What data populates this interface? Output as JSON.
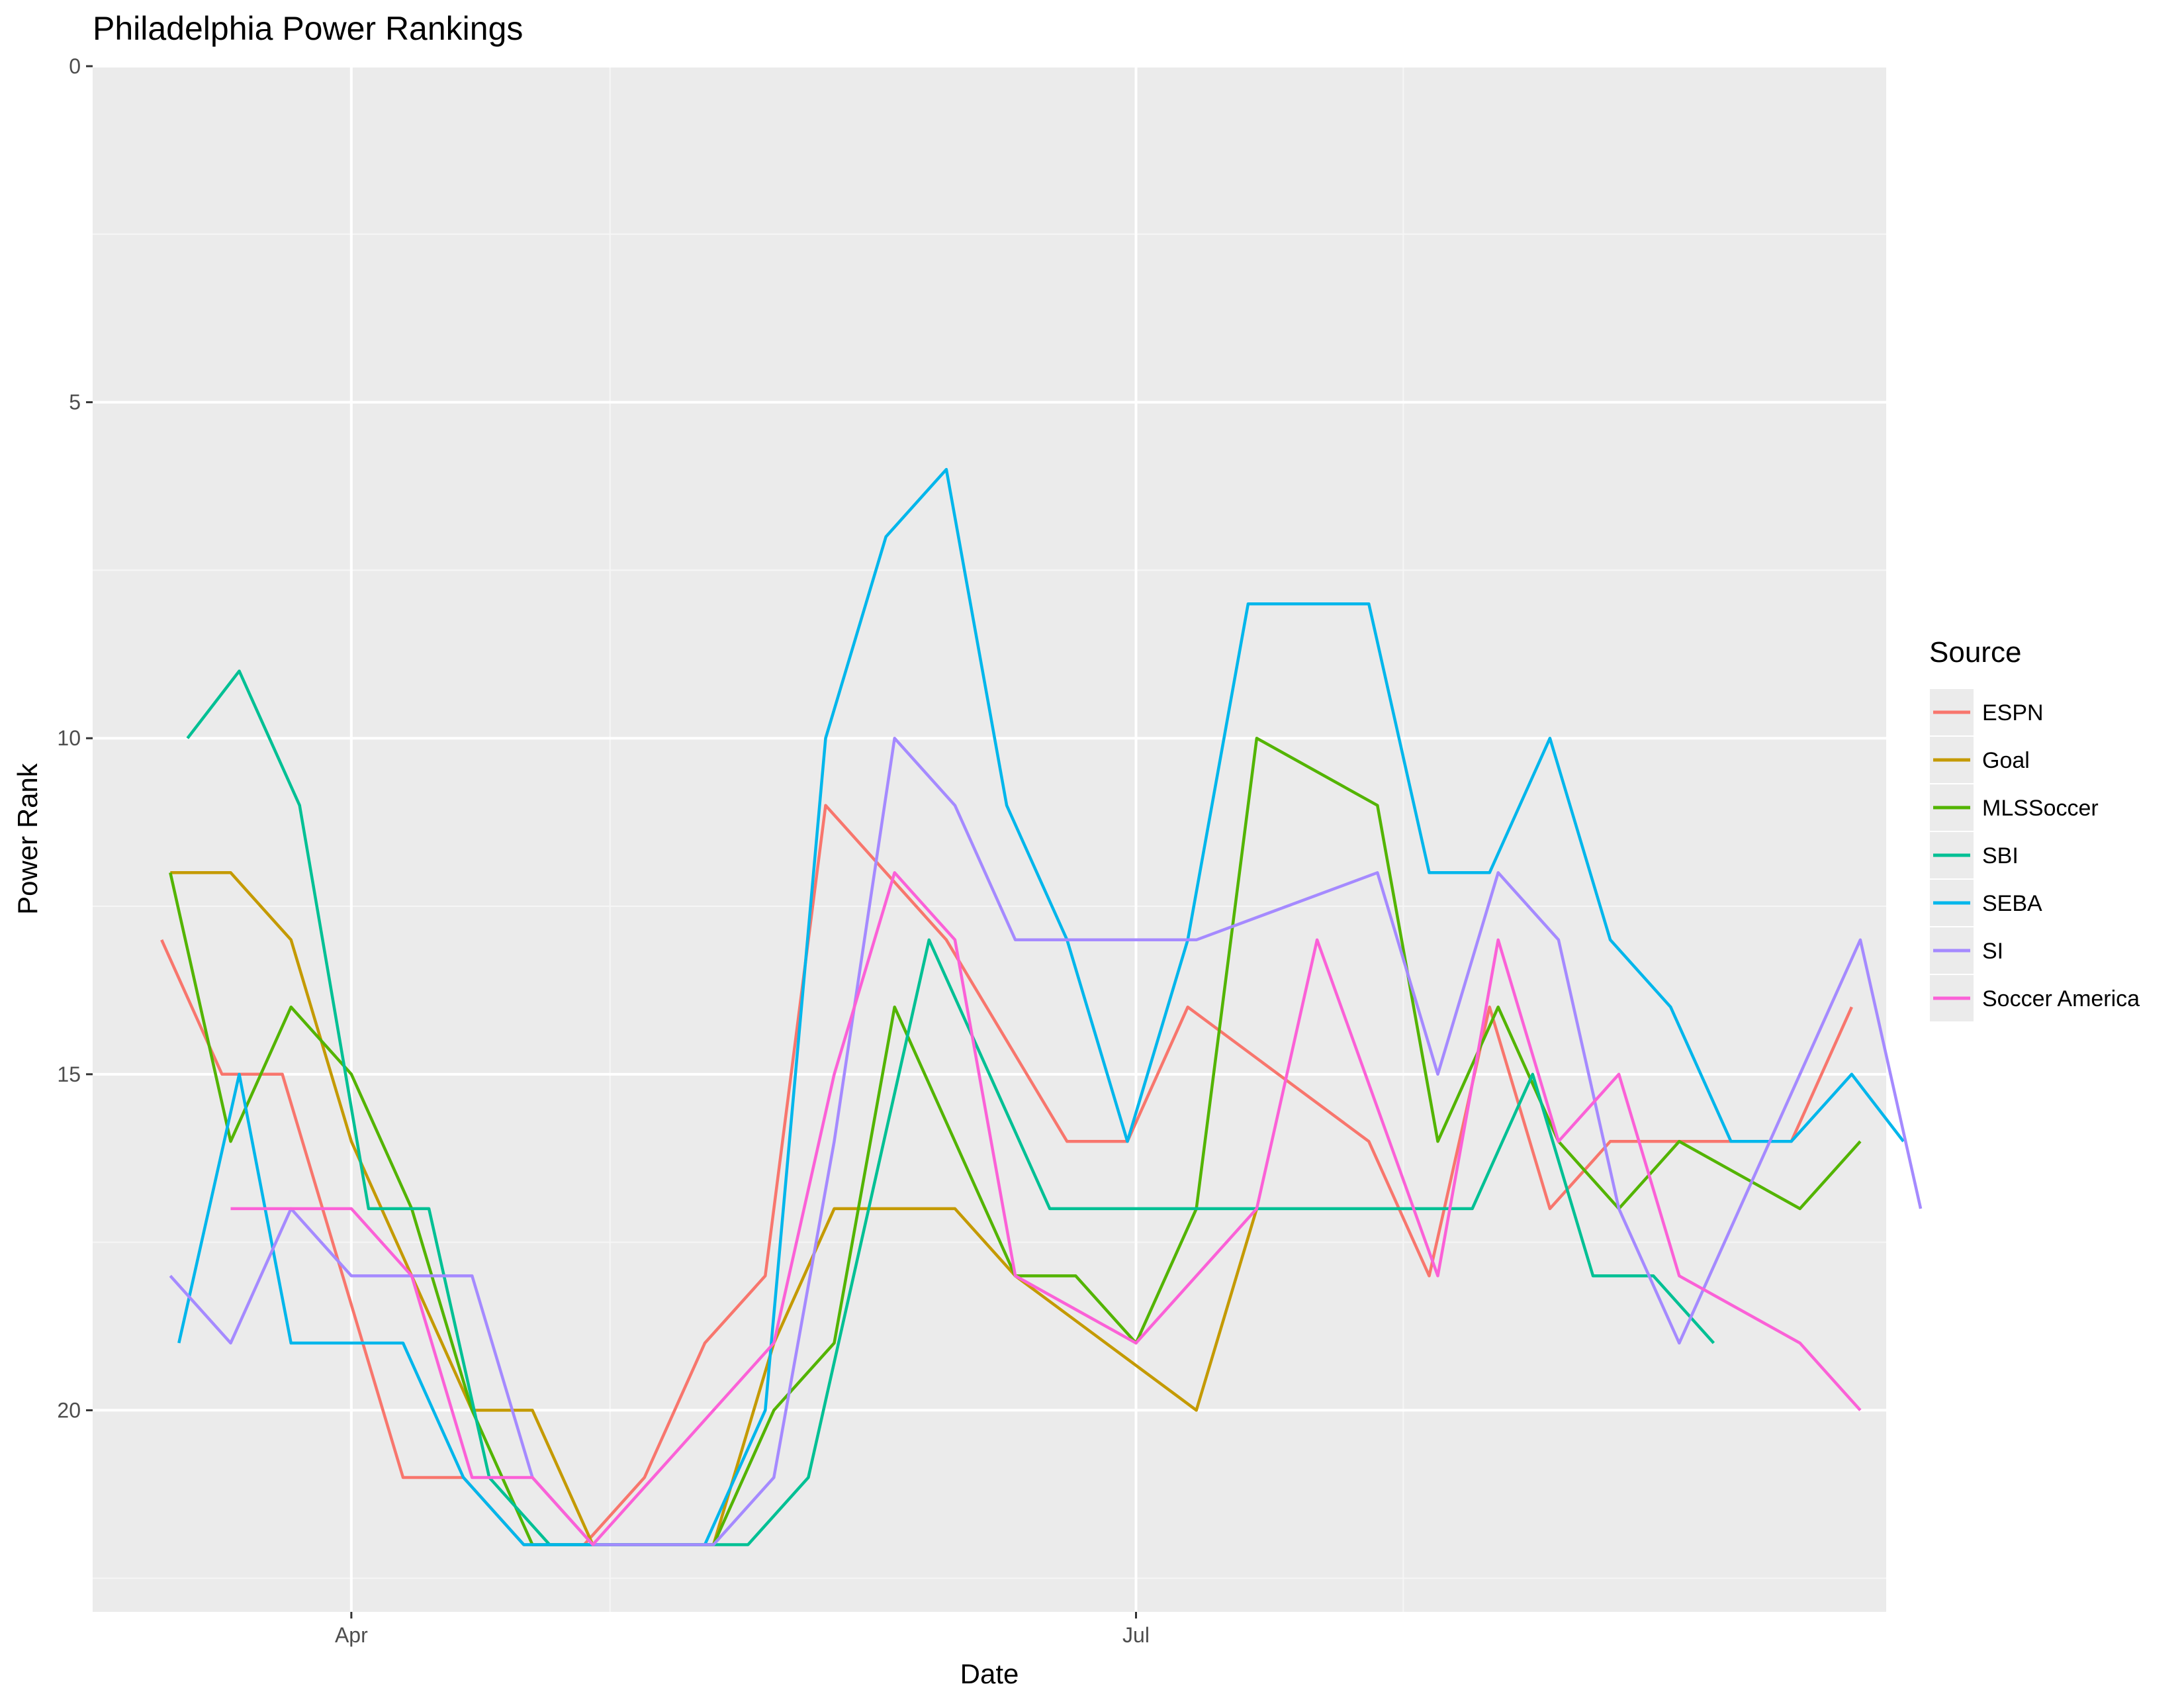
{
  "chart_data": {
    "type": "line",
    "title": "Philadelphia Power Rankings",
    "xlabel": "Date",
    "ylabel": "Power Rank",
    "y_reversed": true,
    "ylim": [
      0,
      23
    ],
    "y_ticks": [
      0,
      5,
      10,
      15,
      20
    ],
    "xlim": [
      "2016-03-02",
      "2016-09-26"
    ],
    "x_ticks": [
      {
        "date": "2016-04-01",
        "label": "Apr"
      },
      {
        "date": "2016-07-01",
        "label": "Jul"
      }
    ],
    "x_minor_ticks": [
      "2016-05-01",
      "2016-08-01"
    ],
    "legend": {
      "title": "Source",
      "position": "right"
    },
    "grid": true,
    "series": [
      {
        "name": "ESPN",
        "color": "#F8766D",
        "points": [
          [
            "2016-03-10",
            13
          ],
          [
            "2016-03-17",
            15
          ],
          [
            "2016-03-24",
            15
          ],
          [
            "2016-03-31",
            18
          ],
          [
            "2016-04-07",
            21
          ],
          [
            "2016-04-14",
            21
          ],
          [
            "2016-04-21",
            22
          ],
          [
            "2016-04-28",
            22
          ],
          [
            "2016-05-05",
            21
          ],
          [
            "2016-05-12",
            19
          ],
          [
            "2016-05-19",
            18
          ],
          [
            "2016-05-26",
            11
          ],
          [
            "2016-06-02",
            12
          ],
          [
            "2016-06-09",
            13
          ],
          [
            "2016-06-23",
            16
          ],
          [
            "2016-06-30",
            16
          ],
          [
            "2016-07-07",
            14
          ],
          [
            "2016-07-28",
            16
          ],
          [
            "2016-08-04",
            18
          ],
          [
            "2016-08-11",
            14
          ],
          [
            "2016-08-18",
            17
          ],
          [
            "2016-08-25",
            16
          ],
          [
            "2016-09-15",
            16
          ],
          [
            "2016-09-22",
            14
          ]
        ]
      },
      {
        "name": "Goal",
        "color": "#C49A00",
        "points": [
          [
            "2016-03-11",
            12
          ],
          [
            "2016-03-18",
            12
          ],
          [
            "2016-03-25",
            13
          ],
          [
            "2016-04-01",
            16
          ],
          [
            "2016-04-08",
            18
          ],
          [
            "2016-04-15",
            20
          ],
          [
            "2016-04-22",
            20
          ],
          [
            "2016-04-29",
            22
          ],
          [
            "2016-05-06",
            22
          ],
          [
            "2016-05-13",
            22
          ],
          [
            "2016-05-20",
            19
          ],
          [
            "2016-05-27",
            17
          ],
          [
            "2016-06-10",
            17
          ],
          [
            "2016-06-17",
            18
          ],
          [
            "2016-07-08",
            20
          ],
          [
            "2016-07-15",
            17
          ]
        ]
      },
      {
        "name": "MLSSoccer",
        "color": "#53B400",
        "points": [
          [
            "2016-03-11",
            12
          ],
          [
            "2016-03-18",
            16
          ],
          [
            "2016-03-25",
            14
          ],
          [
            "2016-04-01",
            15
          ],
          [
            "2016-04-08",
            17
          ],
          [
            "2016-04-15",
            20
          ],
          [
            "2016-04-22",
            22
          ],
          [
            "2016-05-06",
            22
          ],
          [
            "2016-05-13",
            22
          ],
          [
            "2016-05-20",
            20
          ],
          [
            "2016-05-27",
            19
          ],
          [
            "2016-06-03",
            14
          ],
          [
            "2016-06-10",
            16
          ],
          [
            "2016-06-17",
            18
          ],
          [
            "2016-06-24",
            18
          ],
          [
            "2016-07-01",
            19
          ],
          [
            "2016-07-08",
            17
          ],
          [
            "2016-07-15",
            10
          ],
          [
            "2016-07-29",
            11
          ],
          [
            "2016-08-05",
            16
          ],
          [
            "2016-08-12",
            14
          ],
          [
            "2016-08-19",
            16
          ],
          [
            "2016-08-26",
            17
          ],
          [
            "2016-09-02",
            16
          ],
          [
            "2016-09-16",
            17
          ],
          [
            "2016-09-23",
            16
          ]
        ]
      },
      {
        "name": "SBI",
        "color": "#00C094",
        "points": [
          [
            "2016-03-13",
            10
          ],
          [
            "2016-03-19",
            9
          ],
          [
            "2016-03-26",
            11
          ],
          [
            "2016-04-03",
            17
          ],
          [
            "2016-04-10",
            17
          ],
          [
            "2016-04-17",
            21
          ],
          [
            "2016-04-24",
            22
          ],
          [
            "2016-05-01",
            22
          ],
          [
            "2016-05-10",
            22
          ],
          [
            "2016-05-17",
            22
          ],
          [
            "2016-05-24",
            21
          ],
          [
            "2016-05-31",
            17
          ],
          [
            "2016-06-07",
            13
          ],
          [
            "2016-06-14",
            15
          ],
          [
            "2016-06-21",
            17
          ],
          [
            "2016-06-28",
            17
          ],
          [
            "2016-07-19",
            17
          ],
          [
            "2016-08-02",
            17
          ],
          [
            "2016-08-09",
            17
          ],
          [
            "2016-08-16",
            15
          ],
          [
            "2016-08-23",
            18
          ],
          [
            "2016-08-30",
            18
          ],
          [
            "2016-09-06",
            19
          ]
        ]
      },
      {
        "name": "SEBA",
        "color": "#00B6EB",
        "points": [
          [
            "2016-03-12",
            19
          ],
          [
            "2016-03-19",
            15
          ],
          [
            "2016-03-25",
            19
          ],
          [
            "2016-04-01",
            19
          ],
          [
            "2016-04-07",
            19
          ],
          [
            "2016-04-14",
            21
          ],
          [
            "2016-04-21",
            22
          ],
          [
            "2016-04-28",
            22
          ],
          [
            "2016-05-05",
            22
          ],
          [
            "2016-05-12",
            22
          ],
          [
            "2016-05-19",
            20
          ],
          [
            "2016-05-26",
            10
          ],
          [
            "2016-06-02",
            7
          ],
          [
            "2016-06-09",
            6
          ],
          [
            "2016-06-16",
            11
          ],
          [
            "2016-06-23",
            13
          ],
          [
            "2016-06-30",
            16
          ],
          [
            "2016-07-07",
            13
          ],
          [
            "2016-07-14",
            8
          ],
          [
            "2016-07-28",
            8
          ],
          [
            "2016-08-04",
            12
          ],
          [
            "2016-08-11",
            12
          ],
          [
            "2016-08-18",
            10
          ],
          [
            "2016-08-25",
            13
          ],
          [
            "2016-09-01",
            14
          ],
          [
            "2016-09-08",
            16
          ],
          [
            "2016-09-15",
            16
          ],
          [
            "2016-09-22",
            15
          ],
          [
            "2016-09-28",
            16
          ]
        ]
      },
      {
        "name": "SI",
        "color": "#A58AFF",
        "points": [
          [
            "2016-03-11",
            18
          ],
          [
            "2016-03-18",
            19
          ],
          [
            "2016-03-25",
            17
          ],
          [
            "2016-04-01",
            18
          ],
          [
            "2016-04-08",
            18
          ],
          [
            "2016-04-15",
            18
          ],
          [
            "2016-04-22",
            21
          ],
          [
            "2016-04-29",
            22
          ],
          [
            "2016-05-06",
            22
          ],
          [
            "2016-05-13",
            22
          ],
          [
            "2016-05-20",
            21
          ],
          [
            "2016-05-27",
            16
          ],
          [
            "2016-06-03",
            10
          ],
          [
            "2016-06-10",
            11
          ],
          [
            "2016-06-17",
            13
          ],
          [
            "2016-06-24",
            13
          ],
          [
            "2016-07-08",
            13
          ],
          [
            "2016-07-29",
            12
          ],
          [
            "2016-08-05",
            15
          ],
          [
            "2016-08-12",
            12
          ],
          [
            "2016-08-19",
            13
          ],
          [
            "2016-08-26",
            17
          ],
          [
            "2016-09-02",
            19
          ],
          [
            "2016-09-09",
            17
          ],
          [
            "2016-09-16",
            15
          ],
          [
            "2016-09-23",
            13
          ],
          [
            "2016-09-30",
            17
          ]
        ]
      },
      {
        "name": "Soccer America",
        "color": "#FB61D7",
        "points": [
          [
            "2016-03-18",
            17
          ],
          [
            "2016-03-25",
            17
          ],
          [
            "2016-04-01",
            17
          ],
          [
            "2016-04-08",
            18
          ],
          [
            "2016-04-15",
            21
          ],
          [
            "2016-04-22",
            21
          ],
          [
            "2016-04-29",
            22
          ],
          [
            "2016-05-06",
            21
          ],
          [
            "2016-05-13",
            20
          ],
          [
            "2016-05-20",
            19
          ],
          [
            "2016-05-27",
            15
          ],
          [
            "2016-06-03",
            12
          ],
          [
            "2016-06-10",
            13
          ],
          [
            "2016-06-17",
            18
          ],
          [
            "2016-07-01",
            19
          ],
          [
            "2016-07-15",
            17
          ],
          [
            "2016-07-22",
            13
          ],
          [
            "2016-08-05",
            18
          ],
          [
            "2016-08-12",
            13
          ],
          [
            "2016-08-19",
            16
          ],
          [
            "2016-08-26",
            15
          ],
          [
            "2016-09-02",
            18
          ],
          [
            "2016-09-16",
            19
          ],
          [
            "2016-09-23",
            20
          ]
        ]
      }
    ]
  }
}
